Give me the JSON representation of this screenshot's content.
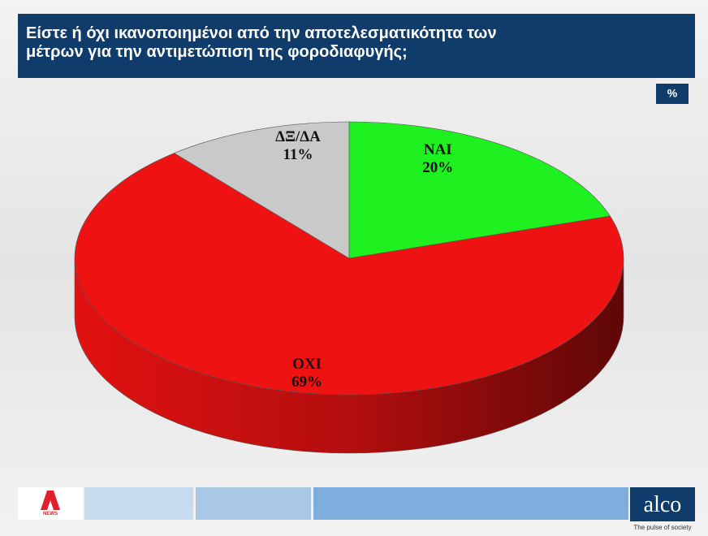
{
  "chart_data": {
    "type": "pie",
    "title": "Είστε ή όχι ικανοποιημένοι από την αποτελεσματικότητα των μέτρων για την αντιμετώπιση της φοροδιαφυγής;",
    "unit_label": "%",
    "categories": [
      "ΝΑΙ",
      "ΟΧΙ",
      "ΔΞ/ΔΑ"
    ],
    "values": [
      20,
      69,
      11
    ],
    "value_labels": [
      "20%",
      "69%",
      "11%"
    ],
    "colors": [
      "#1ff01f",
      "#ee1212",
      "#c9c9c9"
    ]
  },
  "footer": {
    "logo_text": "NEWS",
    "brand": "alco",
    "tagline": "The pulse of society"
  }
}
